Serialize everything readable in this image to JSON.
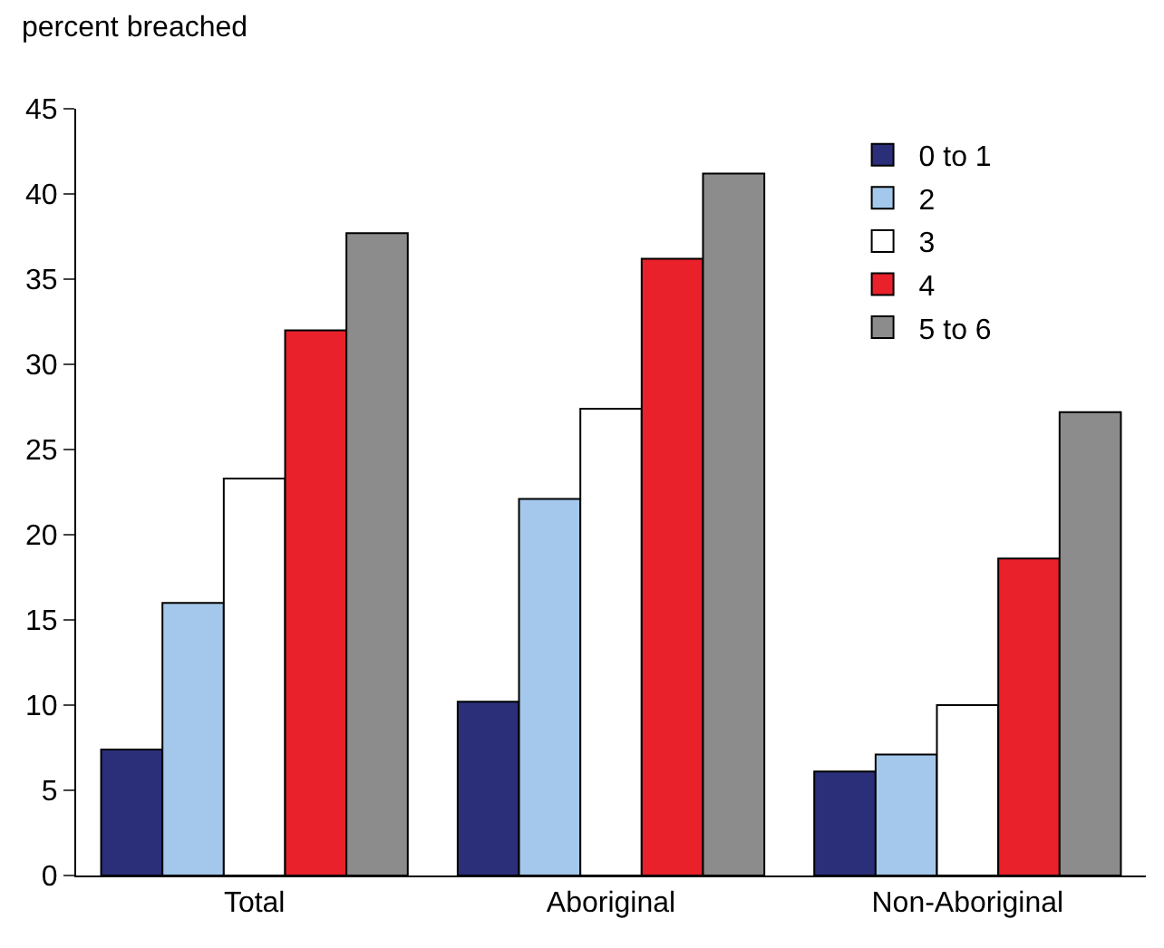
{
  "chart_data": {
    "type": "bar",
    "ylabel": "percent breached",
    "categories": [
      "Total",
      "Aboriginal",
      "Non-Aboriginal"
    ],
    "series": [
      {
        "name": "0 to 1",
        "color": "#2b2f7a",
        "values": [
          7.4,
          10.2,
          6.1
        ]
      },
      {
        "name": "2",
        "color": "#a3c8eb",
        "values": [
          16.0,
          22.1,
          7.1
        ]
      },
      {
        "name": "3",
        "color": "#ffffff",
        "values": [
          23.3,
          27.4,
          10.0
        ]
      },
      {
        "name": "4",
        "color": "#e8212a",
        "values": [
          32.0,
          36.2,
          18.6
        ]
      },
      {
        "name": "5 to 6",
        "color": "#8c8c8c",
        "values": [
          37.7,
          41.2,
          27.2
        ]
      }
    ],
    "ylim": [
      0,
      45
    ],
    "yticks": [
      0,
      5,
      10,
      15,
      20,
      25,
      30,
      35,
      40,
      45
    ],
    "legend": "top right"
  }
}
